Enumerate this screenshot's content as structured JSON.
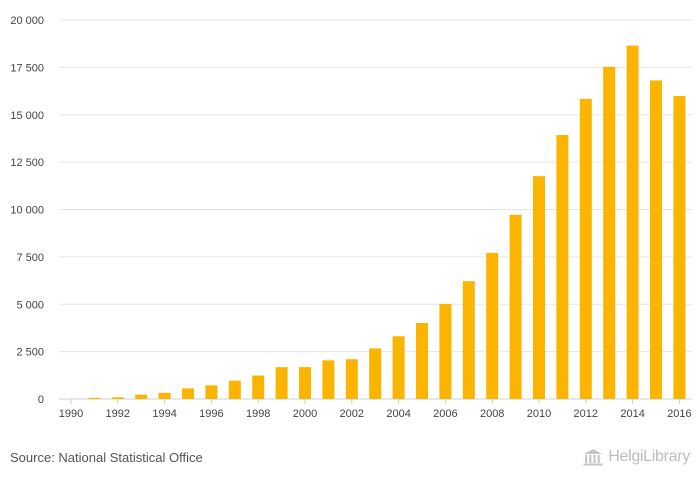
{
  "chart_data": {
    "type": "bar",
    "title": "",
    "xlabel": "",
    "ylabel": "",
    "categories": [
      "1990",
      "1991",
      "1992",
      "1993",
      "1994",
      "1995",
      "1996",
      "1997",
      "1998",
      "1999",
      "2000",
      "2001",
      "2002",
      "2003",
      "2004",
      "2005",
      "2006",
      "2007",
      "2008",
      "2009",
      "2010",
      "2011",
      "2012",
      "2013",
      "2014",
      "2015",
      "2016"
    ],
    "values": [
      0,
      60,
      90,
      230,
      330,
      560,
      720,
      970,
      1240,
      1680,
      1680,
      2040,
      2100,
      2670,
      3310,
      4010,
      5020,
      6220,
      7710,
      9720,
      11760,
      13930,
      15840,
      17530,
      18650,
      16810,
      15990
    ],
    "x_tick_labels": [
      "1990",
      "1992",
      "1994",
      "1996",
      "1998",
      "2000",
      "2002",
      "2004",
      "2006",
      "2008",
      "2010",
      "2012",
      "2014",
      "2016"
    ],
    "y_tick_labels": [
      "0",
      "2 500",
      "5 000",
      "7 500",
      "10 000",
      "12 500",
      "15 000",
      "17 500",
      "20 000"
    ],
    "y_ticks": [
      0,
      2500,
      5000,
      7500,
      10000,
      12500,
      15000,
      17500,
      20000
    ],
    "ylim": [
      0,
      20000
    ],
    "grid": true,
    "bar_color": "#FBB400",
    "grid_color": "#E6E6E6"
  },
  "footer": {
    "source": "Source: National Statistical Office",
    "brand": "HelgiLibrary",
    "brand_icon": "building-columns-icon"
  }
}
